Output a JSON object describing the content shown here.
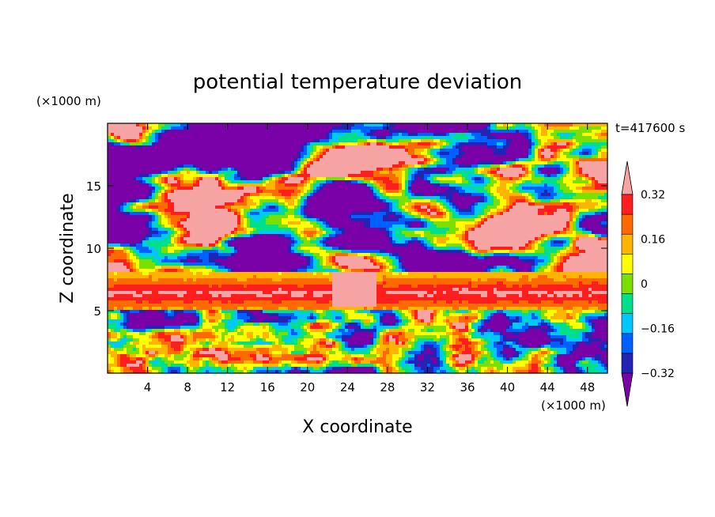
{
  "chart_data": {
    "type": "heatmap",
    "title": "potential temperature deviation",
    "xlabel": "X coordinate",
    "ylabel": "Z coordinate",
    "x_unit_label": "(×1000 m)",
    "y_unit_label": "(×1000 m)",
    "time_label": "t=417600 s",
    "xlim": [
      0,
      50
    ],
    "ylim": [
      0,
      20
    ],
    "x_ticks": [
      4,
      8,
      12,
      16,
      20,
      24,
      28,
      32,
      36,
      40,
      44,
      48
    ],
    "y_ticks": [
      5,
      10,
      15
    ],
    "colorbar": {
      "levels": [
        -0.4,
        -0.32,
        -0.24,
        -0.16,
        -0.08,
        0,
        0.08,
        0.16,
        0.24,
        0.32,
        0.4
      ],
      "tick_labels": [
        "0.32",
        "0.16",
        "0",
        "−0.16",
        "−0.32"
      ],
      "tick_values": [
        0.32,
        0.16,
        0,
        -0.16,
        -0.32
      ],
      "colors": [
        "#7a00a8",
        "#2323b4",
        "#0060ff",
        "#00c8ff",
        "#00e08c",
        "#7be000",
        "#ffff00",
        "#ffb400",
        "#ff6a00",
        "#ff1e1e",
        "#f6a3a3"
      ],
      "extend": "both"
    },
    "regions": {
      "lower_turbulent_layer_z": [
        0,
        5
      ],
      "stable_band_z": [
        5.2,
        7.8
      ],
      "upper_mixed_layer_z": [
        8,
        20
      ]
    }
  }
}
